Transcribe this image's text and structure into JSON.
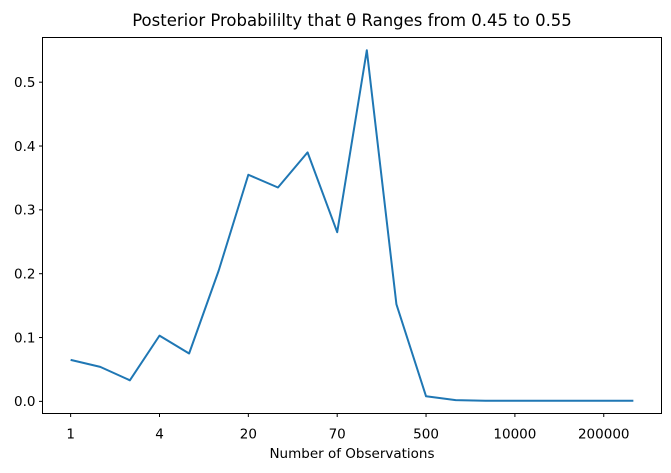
{
  "chart_data": {
    "type": "line",
    "title": "Posterior Probabililty that θ Ranges from 0.45 to 0.55",
    "xlabel": "Number of Observations",
    "ylabel": "",
    "x_scale": "linear-index",
    "n_points": 20,
    "x_index": [
      0,
      1,
      2,
      3,
      4,
      5,
      6,
      7,
      8,
      9,
      10,
      11,
      12,
      13,
      14,
      15,
      16,
      17,
      18,
      19
    ],
    "series": [
      {
        "name": "posterior_probability",
        "color": "#1f77b4",
        "values": [
          0.065,
          0.054,
          0.033,
          0.103,
          0.075,
          0.205,
          0.355,
          0.335,
          0.39,
          0.265,
          0.55,
          0.152,
          0.008,
          0.002,
          0.001,
          0.001,
          0.001,
          0.001,
          0.001,
          0.001
        ]
      }
    ],
    "x_ticks": {
      "indices": [
        0,
        3,
        6,
        9,
        12,
        15,
        18
      ],
      "labels": [
        "1",
        "4",
        "20",
        "70",
        "500",
        "10000",
        "200000"
      ]
    },
    "y_ticks": {
      "values": [
        0.0,
        0.1,
        0.2,
        0.3,
        0.4,
        0.5
      ],
      "labels": [
        "0.0",
        "0.1",
        "0.2",
        "0.3",
        "0.4",
        "0.5"
      ]
    },
    "xlim": [
      -0.95,
      19.95
    ],
    "ylim": [
      -0.019,
      0.57
    ],
    "grid": false,
    "legend": "none",
    "colors": {
      "line": "#1f77b4",
      "text": "#000000",
      "spine": "#000000",
      "background": "#ffffff"
    }
  }
}
